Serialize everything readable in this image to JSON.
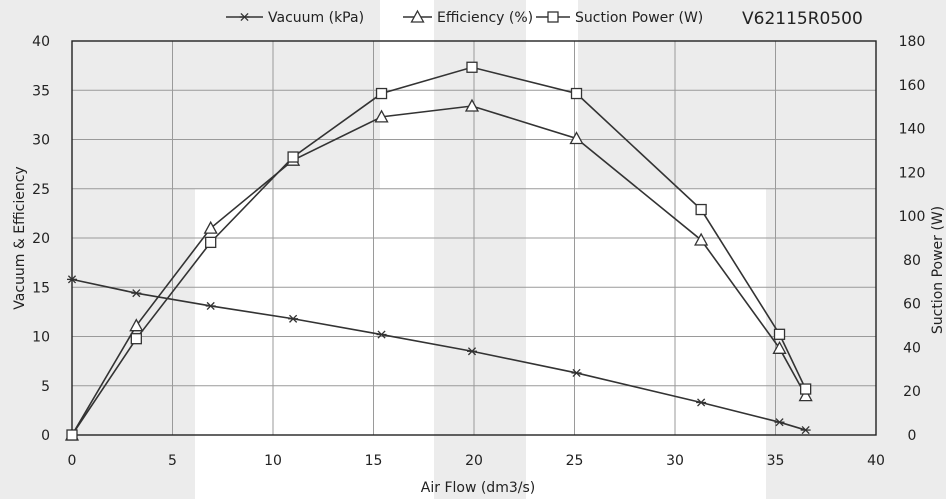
{
  "chart_data": {
    "type": "line",
    "model_label": "V62115R0500",
    "xlabel": "Air Flow  (dm3/s)",
    "ylabel_left": "Vacuum & Efficiency",
    "ylabel_right": "Suction Power (W)",
    "xlim": [
      0,
      40
    ],
    "ylim_left": [
      0,
      40
    ],
    "ylim_right": [
      0,
      180
    ],
    "x_ticks": [
      0,
      5,
      10,
      15,
      20,
      25,
      30,
      35,
      40
    ],
    "y_left_ticks": [
      0,
      5,
      10,
      15,
      20,
      25,
      30,
      35,
      40
    ],
    "y_right_ticks": [
      0,
      20,
      40,
      60,
      80,
      100,
      120,
      140,
      160,
      180
    ],
    "grid": true,
    "legend_position": "top",
    "series": [
      {
        "name": "Vacuum (kPa)",
        "axis": "left",
        "marker": "asterisk",
        "x": [
          0,
          3.2,
          6.9,
          11.0,
          15.4,
          19.9,
          25.1,
          31.3,
          35.2,
          36.5
        ],
        "y": [
          15.8,
          14.4,
          13.1,
          11.8,
          10.2,
          8.5,
          6.3,
          3.3,
          1.3,
          0.5
        ]
      },
      {
        "name": "Efficiency (%)",
        "axis": "left",
        "marker": "triangle",
        "x": [
          0,
          3.2,
          6.9,
          11.0,
          15.4,
          19.9,
          25.1,
          31.3,
          35.2,
          36.5
        ],
        "y": [
          0,
          11.1,
          21.0,
          27.9,
          32.3,
          33.4,
          30.1,
          19.8,
          8.8,
          4.0
        ]
      },
      {
        "name": "Suction Power (W)",
        "axis": "right",
        "marker": "square",
        "x": [
          0,
          3.2,
          6.9,
          11.0,
          15.4,
          19.9,
          25.1,
          31.3,
          35.2,
          36.5
        ],
        "y": [
          0,
          44,
          88,
          127,
          156,
          168,
          156,
          103,
          46,
          21
        ]
      }
    ]
  }
}
